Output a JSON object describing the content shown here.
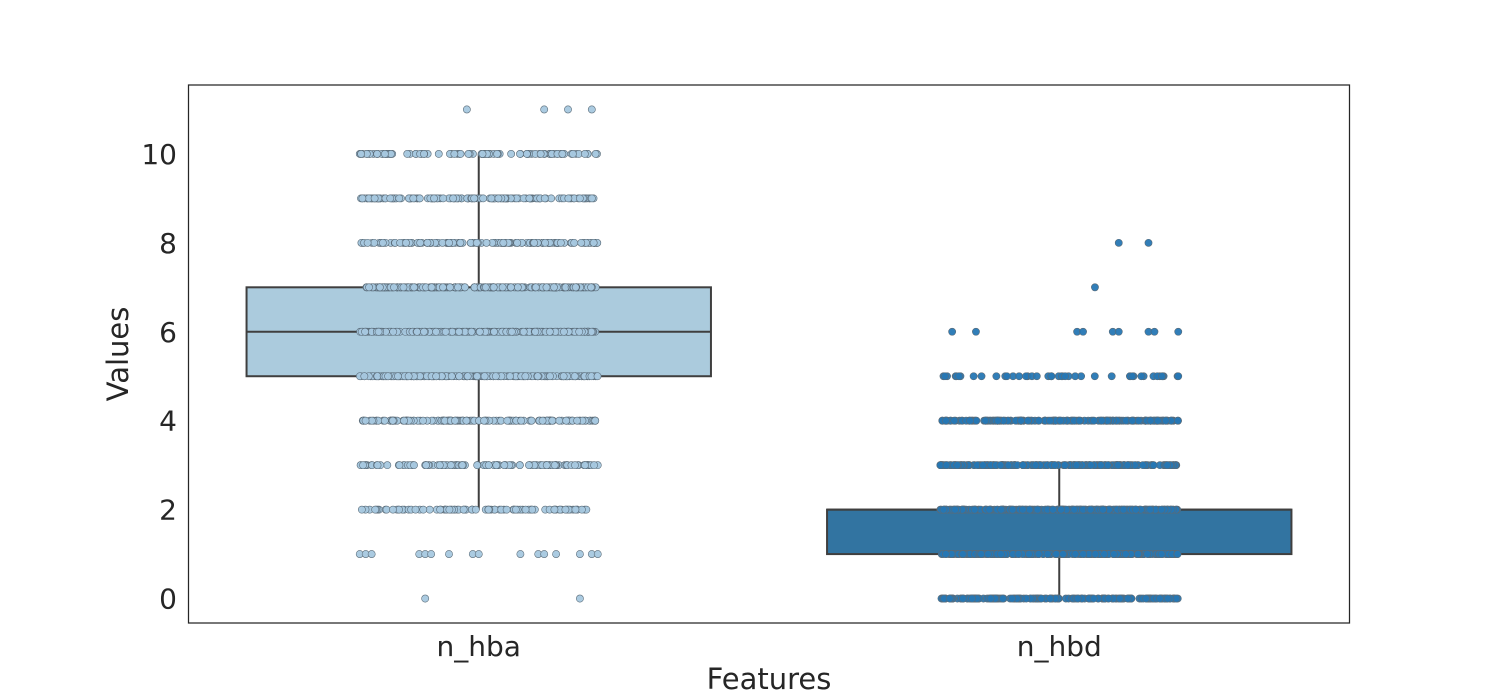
{
  "chart_data": {
    "type": "box",
    "title": "",
    "xlabel": "Features",
    "ylabel": "Values",
    "ylim": [
      -0.55,
      11.55
    ],
    "yticks": [
      0,
      2,
      4,
      6,
      8,
      10
    ],
    "categories": [
      "n_hba",
      "n_hbd"
    ],
    "grid": false,
    "legend": "none",
    "series": [
      {
        "category": "n_hba",
        "color": "#abcbdd",
        "point_color": "#a6c8df",
        "box": {
          "q1": 5,
          "median": 6,
          "q3": 7,
          "whisker_low": 2,
          "whisker_high": 10
        },
        "points": [
          {
            "value": 11,
            "jitter": [
              -0.02,
              0.11,
              0.15,
              0.19
            ]
          },
          {
            "value": 10,
            "count": 90
          },
          {
            "value": 9,
            "count": 140
          },
          {
            "value": 8,
            "count": 150
          },
          {
            "value": 7,
            "count": 220
          },
          {
            "value": 6,
            "count": 240
          },
          {
            "value": 5,
            "count": 220
          },
          {
            "value": 4,
            "count": 150
          },
          {
            "value": 3,
            "count": 120
          },
          {
            "value": 2,
            "count": 90
          },
          {
            "value": 1,
            "jitter": [
              -0.2,
              -0.19,
              -0.18,
              -0.1,
              -0.09,
              -0.08,
              -0.05,
              -0.01,
              0.0,
              0.07,
              0.1,
              0.11,
              0.13,
              0.17,
              0.19,
              0.2
            ]
          },
          {
            "value": 0,
            "jitter": [
              -0.09,
              0.17
            ]
          }
        ]
      },
      {
        "category": "n_hbd",
        "color": "#3274a1",
        "point_color": "#2677b4",
        "box": {
          "q1": 1,
          "median": 2,
          "q3": 2,
          "whisker_low": 0,
          "whisker_high": 3
        },
        "points": [
          {
            "value": 8,
            "jitter": [
              0.1,
              0.15
            ]
          },
          {
            "value": 7,
            "jitter": [
              0.06
            ]
          },
          {
            "value": 6,
            "jitter": [
              -0.18,
              -0.14,
              0.03,
              0.04,
              0.09,
              0.1,
              0.15,
              0.16,
              0.2
            ]
          },
          {
            "value": 5,
            "count": 45
          },
          {
            "value": 4,
            "count": 200
          },
          {
            "value": 3,
            "count": 240
          },
          {
            "value": 2,
            "count": 260
          },
          {
            "value": 1,
            "count": 240
          },
          {
            "value": 0,
            "count": 180
          }
        ]
      }
    ]
  }
}
